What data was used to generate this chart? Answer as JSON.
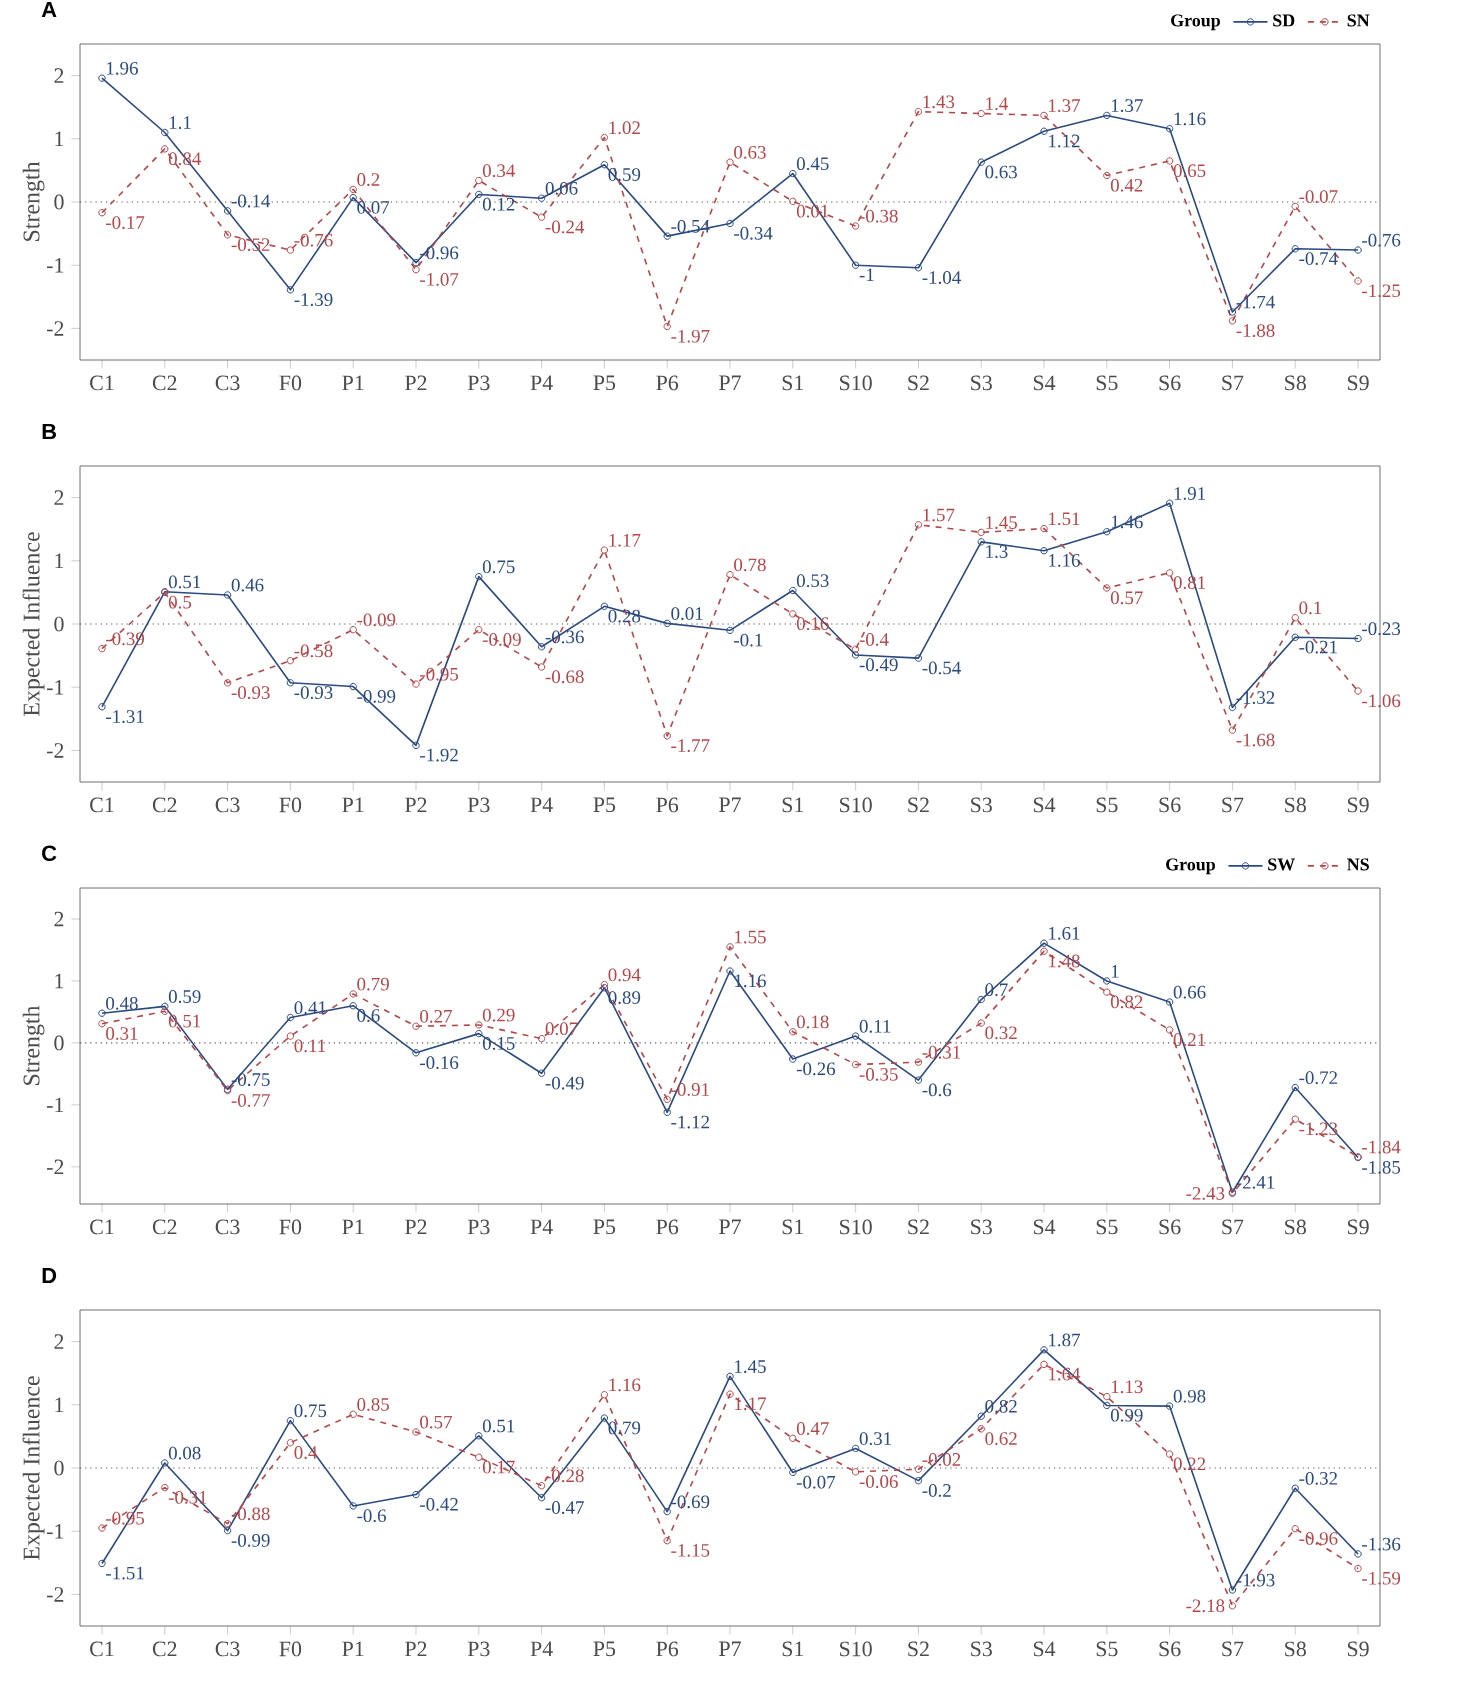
{
  "chart_data": [
    {
      "type": "line",
      "title": "A",
      "ylabel": "Strength",
      "legend_title": "Group",
      "legend": "top right",
      "data_labels": true,
      "marker": "circle",
      "grid": false,
      "categories": [
        "C1",
        "C2",
        "C3",
        "F0",
        "P1",
        "P2",
        "P3",
        "P4",
        "P5",
        "P6",
        "P7",
        "S1",
        "S10",
        "S2",
        "S3",
        "S4",
        "S5",
        "S6",
        "S7",
        "S8",
        "S9"
      ],
      "ylim": [
        -2.5,
        2.5
      ],
      "yticks": [
        -2,
        -1,
        0,
        1,
        2
      ],
      "ref_lines": [
        {
          "axis": "y",
          "value": 0,
          "line_style": "dotted",
          "color": "#555555"
        }
      ],
      "series": [
        {
          "name": "SD",
          "color": "#2b4a80",
          "line_style": "solid",
          "values": [
            1.96,
            1.1,
            -0.14,
            -1.39,
            0.07,
            -0.96,
            0.12,
            0.06,
            0.59,
            -0.54,
            -0.34,
            0.45,
            -1,
            -1.04,
            0.63,
            1.12,
            1.37,
            1.16,
            -1.74,
            -0.74,
            -0.76
          ]
        },
        {
          "name": "SN",
          "color": "#b5474b",
          "line_style": "dashed",
          "values": [
            -0.17,
            0.84,
            -0.52,
            -0.76,
            0.2,
            -1.07,
            0.34,
            -0.24,
            1.02,
            -1.97,
            0.63,
            0.01,
            -0.38,
            1.43,
            1.4,
            1.37,
            0.42,
            0.65,
            -1.88,
            -0.07,
            -1.25
          ]
        }
      ]
    },
    {
      "type": "line",
      "title": "B",
      "ylabel": "Expected Influence",
      "data_labels": true,
      "marker": "circle",
      "grid": false,
      "categories": [
        "C1",
        "C2",
        "C3",
        "F0",
        "P1",
        "P2",
        "P3",
        "P4",
        "P5",
        "P6",
        "P7",
        "S1",
        "S10",
        "S2",
        "S3",
        "S4",
        "S5",
        "S6",
        "S7",
        "S8",
        "S9"
      ],
      "ylim": [
        -2.5,
        2.5
      ],
      "yticks": [
        -2,
        -1,
        0,
        1,
        2
      ],
      "ref_lines": [
        {
          "axis": "y",
          "value": 0,
          "line_style": "dotted",
          "color": "#555555"
        }
      ],
      "series": [
        {
          "color": "#2b4a80",
          "line_style": "solid",
          "values": [
            -1.31,
            0.51,
            0.46,
            -0.93,
            -0.99,
            -1.92,
            0.75,
            -0.36,
            0.28,
            0.01,
            -0.1,
            0.53,
            -0.49,
            -0.54,
            1.3,
            1.16,
            1.46,
            1.91,
            -1.32,
            -0.21,
            -0.23
          ]
        },
        {
          "color": "#b5474b",
          "line_style": "dashed",
          "values": [
            -0.39,
            0.5,
            -0.93,
            -0.58,
            -0.09,
            -0.95,
            -0.09,
            -0.68,
            1.17,
            -1.77,
            0.78,
            0.16,
            -0.4,
            1.57,
            1.45,
            1.51,
            0.57,
            0.81,
            -1.68,
            0.1,
            -1.06
          ]
        }
      ]
    },
    {
      "type": "line",
      "title": "C",
      "ylabel": "Strength",
      "legend_title": "Group",
      "legend": "top right",
      "data_labels": true,
      "marker": "circle",
      "grid": false,
      "categories": [
        "C1",
        "C2",
        "C3",
        "F0",
        "P1",
        "P2",
        "P3",
        "P4",
        "P5",
        "P6",
        "P7",
        "S1",
        "S10",
        "S2",
        "S3",
        "S4",
        "S5",
        "S6",
        "S7",
        "S8",
        "S9"
      ],
      "ylim": [
        -2.6,
        2.5
      ],
      "yticks": [
        -2,
        -1,
        0,
        1,
        2
      ],
      "ref_lines": [
        {
          "axis": "y",
          "value": 0,
          "line_style": "dotted",
          "color": "#555555"
        }
      ],
      "series": [
        {
          "name": "SW",
          "color": "#2b4a80",
          "line_style": "solid",
          "values": [
            0.48,
            0.59,
            -0.75,
            0.41,
            0.6,
            -0.16,
            0.15,
            -0.49,
            0.89,
            -1.12,
            1.16,
            -0.26,
            0.11,
            -0.6,
            0.7,
            1.61,
            1,
            0.66,
            -2.41,
            -0.72,
            -1.85
          ]
        },
        {
          "name": "NS",
          "color": "#b5474b",
          "line_style": "dashed",
          "values": [
            0.31,
            0.51,
            -0.77,
            0.11,
            0.79,
            0.27,
            0.29,
            0.07,
            0.94,
            -0.91,
            1.55,
            0.18,
            -0.35,
            -0.31,
            0.32,
            1.48,
            0.82,
            0.21,
            -2.43,
            -1.23,
            -1.84
          ]
        }
      ]
    },
    {
      "type": "line",
      "title": "D",
      "ylabel": "Expected Influence",
      "data_labels": true,
      "marker": "circle",
      "grid": false,
      "categories": [
        "C1",
        "C2",
        "C3",
        "F0",
        "P1",
        "P2",
        "P3",
        "P4",
        "P5",
        "P6",
        "P7",
        "S1",
        "S10",
        "S2",
        "S3",
        "S4",
        "S5",
        "S6",
        "S7",
        "S8",
        "S9"
      ],
      "ylim": [
        -2.5,
        2.5
      ],
      "yticks": [
        -2,
        -1,
        0,
        1,
        2
      ],
      "ref_lines": [
        {
          "axis": "y",
          "value": 0,
          "line_style": "dotted",
          "color": "#555555"
        }
      ],
      "series": [
        {
          "color": "#2b4a80",
          "line_style": "solid",
          "values": [
            -1.51,
            0.08,
            -0.99,
            0.75,
            -0.6,
            -0.42,
            0.51,
            -0.47,
            0.79,
            -0.69,
            1.45,
            -0.07,
            0.31,
            -0.2,
            0.82,
            1.87,
            0.99,
            0.98,
            -1.93,
            -0.32,
            -1.36
          ]
        },
        {
          "color": "#b5474b",
          "line_style": "dashed",
          "values": [
            -0.95,
            -0.31,
            -0.88,
            0.4,
            0.85,
            0.57,
            0.17,
            -0.28,
            1.16,
            -1.15,
            1.17,
            0.47,
            -0.06,
            -0.02,
            0.62,
            1.64,
            1.13,
            0.22,
            -2.18,
            -0.96,
            -1.59
          ]
        }
      ]
    }
  ]
}
